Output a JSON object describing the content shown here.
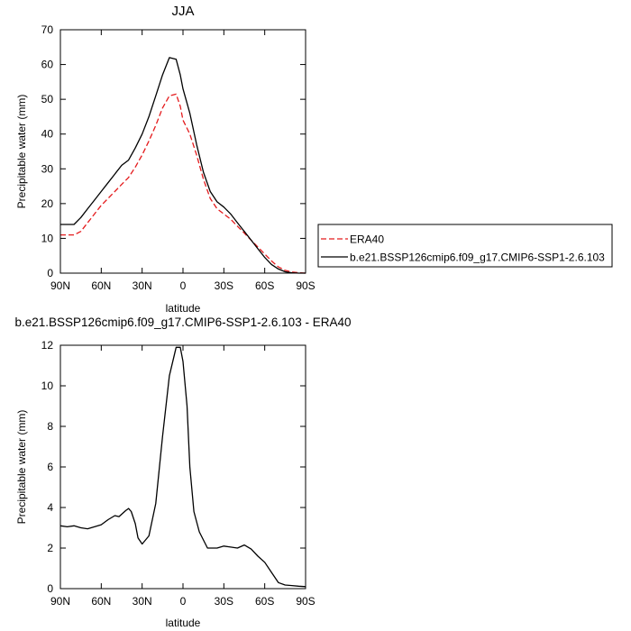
{
  "chart_data": [
    {
      "type": "line",
      "title": "JJA",
      "xlabel": "latitude",
      "ylabel": "Precipitable water (mm)",
      "xlim": [
        90,
        -90
      ],
      "ylim": [
        0,
        70
      ],
      "xticks": [
        {
          "value": 90,
          "label": "90N"
        },
        {
          "value": 60,
          "label": "60N"
        },
        {
          "value": 30,
          "label": "30N"
        },
        {
          "value": 0,
          "label": "0"
        },
        {
          "value": -30,
          "label": "30S"
        },
        {
          "value": -60,
          "label": "60S"
        },
        {
          "value": -90,
          "label": "90S"
        }
      ],
      "yticks": [
        0,
        10,
        20,
        30,
        40,
        50,
        60,
        70
      ],
      "grid": false,
      "legend": "right",
      "series": [
        {
          "name": "ERA40",
          "color": "#e41a1c",
          "dash": "dashed",
          "x": [
            90,
            80,
            75,
            70,
            65,
            60,
            55,
            50,
            45,
            40,
            35,
            30,
            25,
            20,
            15,
            10,
            5,
            2,
            0,
            -5,
            -10,
            -15,
            -20,
            -25,
            -30,
            -35,
            -40,
            -45,
            -50,
            -55,
            -60,
            -65,
            -70,
            -75,
            -80,
            -85,
            -90
          ],
          "values": [
            11,
            11,
            12,
            14.5,
            17,
            19.5,
            21.5,
            23.5,
            25.5,
            27.5,
            30.5,
            34,
            38,
            42.5,
            47.5,
            51,
            51.5,
            48,
            44,
            40,
            34,
            27,
            21.5,
            18.5,
            17,
            15.5,
            13.5,
            11.5,
            9.5,
            7.5,
            5.5,
            3.5,
            1.8,
            0.8,
            0.3,
            0.1,
            0
          ]
        },
        {
          "name": "b.e21.BSSP126cmip6.f09_g17.CMIP6-SSP1-2.6.103",
          "color": "#000000",
          "dash": "solid",
          "x": [
            90,
            80,
            75,
            70,
            65,
            60,
            55,
            50,
            45,
            40,
            35,
            30,
            25,
            20,
            15,
            10,
            5,
            2,
            0,
            -5,
            -10,
            -15,
            -20,
            -25,
            -30,
            -35,
            -40,
            -45,
            -50,
            -55,
            -60,
            -65,
            -70,
            -75,
            -80,
            -85,
            -90
          ],
          "values": [
            14,
            14,
            16,
            18.5,
            21,
            23.5,
            26,
            28.5,
            31,
            32.5,
            36,
            40,
            45,
            51,
            57,
            62,
            61.5,
            57,
            53,
            46,
            37,
            29,
            23.5,
            20.5,
            19,
            17,
            14.5,
            12,
            9.5,
            7,
            4.5,
            2.5,
            1.2,
            0.4,
            0.1,
            0,
            0
          ]
        }
      ]
    },
    {
      "type": "line",
      "title": "b.e21.BSSP126cmip6.f09_g17.CMIP6-SSP1-2.6.103 - ERA40",
      "xlabel": "latitude",
      "ylabel": "Precipitable water (mm)",
      "xlim": [
        90,
        -90
      ],
      "ylim": [
        0,
        12
      ],
      "xticks": [
        {
          "value": 90,
          "label": "90N"
        },
        {
          "value": 60,
          "label": "60N"
        },
        {
          "value": 30,
          "label": "30N"
        },
        {
          "value": 0,
          "label": "0"
        },
        {
          "value": -30,
          "label": "30S"
        },
        {
          "value": -60,
          "label": "60S"
        },
        {
          "value": -90,
          "label": "90S"
        }
      ],
      "yticks": [
        0,
        2,
        4,
        6,
        8,
        10,
        12
      ],
      "grid": false,
      "series": [
        {
          "color": "#000000",
          "dash": "solid",
          "x": [
            90,
            85,
            80,
            75,
            70,
            65,
            60,
            55,
            50,
            47,
            42,
            40,
            38,
            35,
            33,
            30,
            25,
            20,
            15,
            10,
            5,
            2,
            0,
            -3,
            -5,
            -8,
            -12,
            -18,
            -25,
            -30,
            -35,
            -40,
            -45,
            -50,
            -55,
            -60,
            -65,
            -70,
            -75,
            -80,
            -85,
            -90
          ],
          "values": [
            3.1,
            3.05,
            3.1,
            3.0,
            2.95,
            3.05,
            3.15,
            3.4,
            3.6,
            3.55,
            3.85,
            3.95,
            3.8,
            3.2,
            2.5,
            2.2,
            2.6,
            4.2,
            7.5,
            10.5,
            11.9,
            11.9,
            11.2,
            9.0,
            6.0,
            3.8,
            2.8,
            2.0,
            2.0,
            2.1,
            2.05,
            2.0,
            2.15,
            1.95,
            1.6,
            1.3,
            0.8,
            0.3,
            0.18,
            0.15,
            0.12,
            0.1
          ]
        }
      ]
    }
  ]
}
